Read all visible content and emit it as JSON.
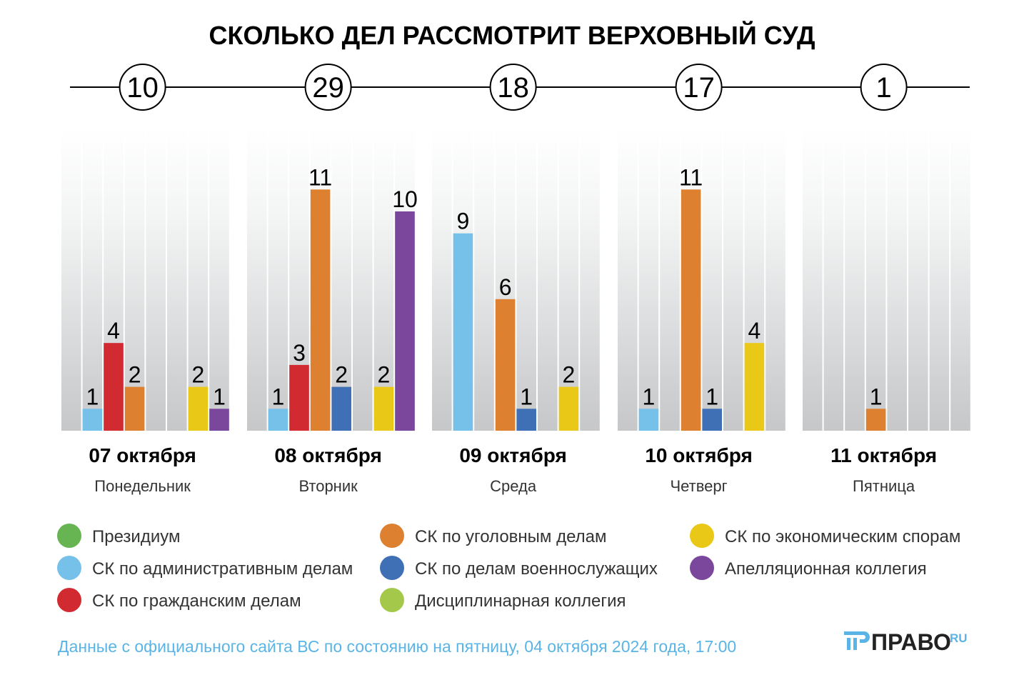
{
  "chart_data": {
    "type": "bar",
    "title": "СКОЛЬКО ДЕЛ РАССМОТРИТ ВЕРХОВНЫЙ СУД",
    "categories": [
      {
        "date": "07 октября",
        "weekday": "Понедельник",
        "total": 10
      },
      {
        "date": "08 октября",
        "weekday": "Вторник",
        "total": 29
      },
      {
        "date": "09 октября",
        "weekday": "Среда",
        "total": 18
      },
      {
        "date": "10 октября",
        "weekday": "Четверг",
        "total": 17
      },
      {
        "date": "11 октября",
        "weekday": "Пятница",
        "total": 1
      }
    ],
    "series": [
      {
        "name": "Президиум",
        "color": "#66b552",
        "values": [
          0,
          0,
          0,
          0,
          0
        ]
      },
      {
        "name": "СК по административным делам",
        "color": "#76c1ea",
        "values": [
          1,
          1,
          9,
          1,
          0
        ]
      },
      {
        "name": "СК по гражданским делам",
        "color": "#d12a30",
        "values": [
          4,
          3,
          0,
          0,
          0
        ]
      },
      {
        "name": "СК по уголовным делам",
        "color": "#dd8131",
        "values": [
          2,
          11,
          6,
          11,
          1
        ]
      },
      {
        "name": "СК по делам военнослужащих",
        "color": "#3f6fb5",
        "values": [
          0,
          2,
          1,
          1,
          0
        ]
      },
      {
        "name": "Дисциплинарная коллегия",
        "color": "#a4c94a",
        "values": [
          0,
          0,
          0,
          0,
          0
        ]
      },
      {
        "name": "СК по экономическим спорам",
        "color": "#eac817",
        "values": [
          2,
          2,
          2,
          4,
          0
        ]
      },
      {
        "name": "Апелляционная коллегия",
        "color": "#7a479c",
        "values": [
          1,
          10,
          0,
          0,
          0
        ]
      }
    ],
    "ylim": [
      0,
      11
    ],
    "legend": "bottom"
  },
  "footnote": "Данные с официального сайта ВС по состоянию на пятницу, 04 октября 2024 года, 17:00",
  "logo": {
    "text": "ПРАВО",
    "suffix": "RU"
  }
}
